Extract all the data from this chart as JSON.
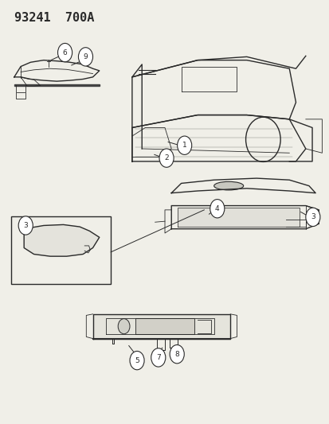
{
  "title": "93241  700A",
  "background_color": "#f0efe8",
  "line_color": "#2a2a2a",
  "circle_color": "#ffffff",
  "circle_edge": "#2a2a2a",
  "figsize": [
    4.14,
    5.33
  ],
  "dpi": 100
}
